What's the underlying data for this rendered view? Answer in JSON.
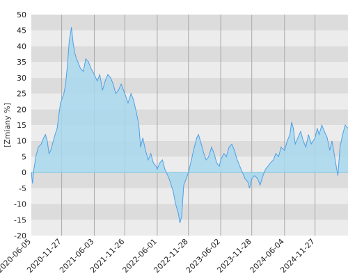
{
  "chart_data": {
    "type": "area",
    "ylabel": "[Zmiany %]",
    "xlabel": "",
    "title": "",
    "ylim": [
      -20,
      50
    ],
    "y_ticks": [
      -20,
      -15,
      -10,
      -5,
      0,
      5,
      10,
      15,
      20,
      25,
      30,
      35,
      40,
      45,
      50
    ],
    "x_range": [
      "2020-06-05",
      "2025-06-05"
    ],
    "x_ticks": [
      "2020-06-05",
      "2020-11-27",
      "2021-06-03",
      "2021-11-26",
      "2022-06-01",
      "2022-11-28",
      "2023-06-02",
      "2023-11-28",
      "2024-06-04",
      "2024-11-27"
    ],
    "grid": true,
    "series": [
      {
        "line_color": "#4d9fe6",
        "fill_color": "#a8d8ee",
        "points": [
          [
            "2020-06-05",
            0
          ],
          [
            "2020-06-12",
            -3.5
          ],
          [
            "2020-06-20",
            1
          ],
          [
            "2020-07-01",
            5
          ],
          [
            "2020-07-15",
            8
          ],
          [
            "2020-08-01",
            9
          ],
          [
            "2020-08-15",
            11
          ],
          [
            "2020-08-25",
            12
          ],
          [
            "2020-09-05",
            10
          ],
          [
            "2020-09-15",
            6
          ],
          [
            "2020-09-25",
            7
          ],
          [
            "2020-10-05",
            9
          ],
          [
            "2020-10-20",
            12
          ],
          [
            "2020-11-01",
            14
          ],
          [
            "2020-11-10",
            18
          ],
          [
            "2020-11-20",
            22
          ],
          [
            "2020-11-27",
            23
          ],
          [
            "2020-12-10",
            25
          ],
          [
            "2020-12-20",
            28
          ],
          [
            "2021-01-01",
            35
          ],
          [
            "2021-01-10",
            42
          ],
          [
            "2021-01-17",
            44
          ],
          [
            "2021-01-22",
            46
          ],
          [
            "2021-02-01",
            41
          ],
          [
            "2021-02-10",
            38
          ],
          [
            "2021-02-20",
            36
          ],
          [
            "2021-03-01",
            35
          ],
          [
            "2021-03-15",
            33
          ],
          [
            "2021-04-01",
            32
          ],
          [
            "2021-04-15",
            36
          ],
          [
            "2021-05-01",
            35
          ],
          [
            "2021-05-15",
            33
          ],
          [
            "2021-06-03",
            31
          ],
          [
            "2021-06-20",
            29
          ],
          [
            "2021-07-05",
            31
          ],
          [
            "2021-07-20",
            26
          ],
          [
            "2021-08-05",
            29
          ],
          [
            "2021-08-20",
            31
          ],
          [
            "2021-09-05",
            30
          ],
          [
            "2021-09-20",
            28
          ],
          [
            "2021-10-05",
            25
          ],
          [
            "2021-10-20",
            26
          ],
          [
            "2021-11-05",
            28
          ],
          [
            "2021-11-26",
            25
          ],
          [
            "2021-12-15",
            22
          ],
          [
            "2022-01-01",
            25
          ],
          [
            "2022-01-15",
            23
          ],
          [
            "2022-02-01",
            19
          ],
          [
            "2022-02-15",
            15
          ],
          [
            "2022-02-25",
            8
          ],
          [
            "2022-03-10",
            11
          ],
          [
            "2022-03-25",
            7
          ],
          [
            "2022-04-10",
            4
          ],
          [
            "2022-04-25",
            6
          ],
          [
            "2022-05-10",
            3
          ],
          [
            "2022-05-25",
            2
          ],
          [
            "2022-06-01",
            1
          ],
          [
            "2022-06-15",
            3
          ],
          [
            "2022-07-01",
            4
          ],
          [
            "2022-07-15",
            1
          ],
          [
            "2022-08-01",
            -1
          ],
          [
            "2022-08-15",
            -3
          ],
          [
            "2022-09-01",
            -6
          ],
          [
            "2022-09-15",
            -10
          ],
          [
            "2022-10-01",
            -13
          ],
          [
            "2022-10-10",
            -16
          ],
          [
            "2022-10-20",
            -14
          ],
          [
            "2022-11-01",
            -4
          ],
          [
            "2022-11-15",
            -2
          ],
          [
            "2022-11-28",
            0
          ],
          [
            "2022-12-15",
            4
          ],
          [
            "2023-01-01",
            8
          ],
          [
            "2023-01-15",
            11
          ],
          [
            "2023-01-25",
            12
          ],
          [
            "2023-02-10",
            9
          ],
          [
            "2023-02-25",
            6
          ],
          [
            "2023-03-10",
            4
          ],
          [
            "2023-03-25",
            5
          ],
          [
            "2023-04-10",
            8
          ],
          [
            "2023-04-25",
            6
          ],
          [
            "2023-05-10",
            3
          ],
          [
            "2023-05-25",
            2
          ],
          [
            "2023-06-02",
            4
          ],
          [
            "2023-06-20",
            6
          ],
          [
            "2023-07-05",
            5
          ],
          [
            "2023-07-20",
            8
          ],
          [
            "2023-08-05",
            9
          ],
          [
            "2023-08-20",
            7
          ],
          [
            "2023-09-05",
            4
          ],
          [
            "2023-09-20",
            2
          ],
          [
            "2023-10-05",
            0
          ],
          [
            "2023-10-20",
            -2
          ],
          [
            "2023-11-05",
            -3
          ],
          [
            "2023-11-15",
            -5
          ],
          [
            "2023-11-28",
            -2
          ],
          [
            "2023-12-15",
            -1
          ],
          [
            "2024-01-01",
            -2
          ],
          [
            "2024-01-15",
            -4
          ],
          [
            "2024-02-01",
            -1
          ],
          [
            "2024-02-15",
            1
          ],
          [
            "2024-03-01",
            2
          ],
          [
            "2024-03-15",
            3
          ],
          [
            "2024-04-01",
            4
          ],
          [
            "2024-04-15",
            6
          ],
          [
            "2024-05-01",
            5
          ],
          [
            "2024-05-15",
            8
          ],
          [
            "2024-06-04",
            7
          ],
          [
            "2024-06-20",
            10
          ],
          [
            "2024-07-05",
            12
          ],
          [
            "2024-07-15",
            16
          ],
          [
            "2024-07-25",
            14
          ],
          [
            "2024-08-05",
            9
          ],
          [
            "2024-08-20",
            11
          ],
          [
            "2024-09-05",
            13
          ],
          [
            "2024-09-20",
            10
          ],
          [
            "2024-10-05",
            8
          ],
          [
            "2024-10-20",
            12
          ],
          [
            "2024-11-05",
            9
          ],
          [
            "2024-11-27",
            11
          ],
          [
            "2024-12-10",
            14
          ],
          [
            "2024-12-20",
            12
          ],
          [
            "2025-01-05",
            15
          ],
          [
            "2025-01-20",
            13
          ],
          [
            "2025-02-05",
            11
          ],
          [
            "2025-02-20",
            7
          ],
          [
            "2025-03-05",
            10
          ],
          [
            "2025-03-20",
            5
          ],
          [
            "2025-04-01",
            1
          ],
          [
            "2025-04-08",
            -1
          ],
          [
            "2025-04-20",
            8
          ],
          [
            "2025-05-05",
            12
          ],
          [
            "2025-05-20",
            15
          ],
          [
            "2025-06-05",
            14
          ]
        ]
      }
    ]
  }
}
